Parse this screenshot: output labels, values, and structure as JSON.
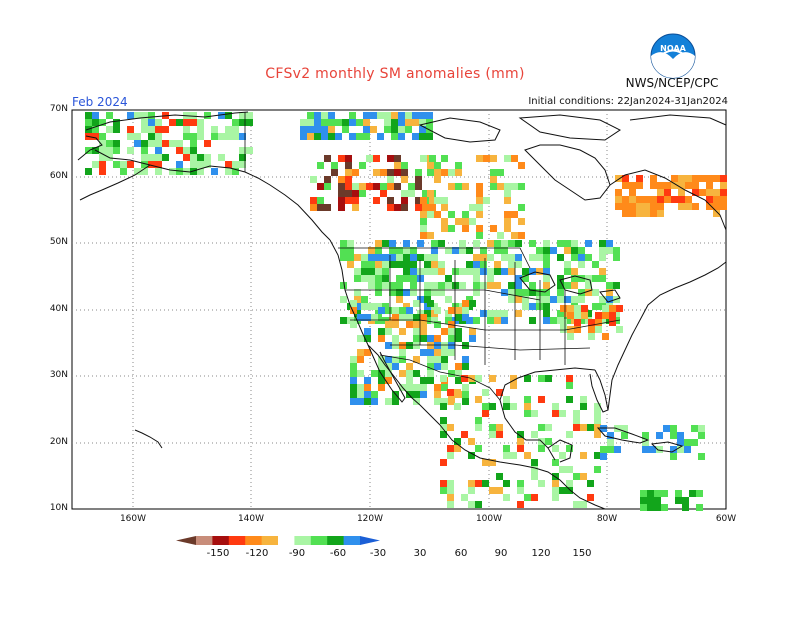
{
  "header": {
    "title": "CFSv2 monthly SM anomalies (mm)",
    "month": "Feb 2024",
    "agency": "NWS/NCEP/CPC",
    "initial_conditions": "Initial conditions: 22Jan2024-31Jan2024",
    "logo_text": "NOAA"
  },
  "axes": {
    "lat_labels": [
      "70N",
      "60N",
      "50N",
      "40N",
      "30N",
      "20N",
      "10N"
    ],
    "lon_labels": [
      "160W",
      "140W",
      "120W",
      "100W",
      "80W",
      "60W"
    ]
  },
  "colorbar": {
    "labels": [
      "-150",
      "-120",
      "-90",
      "-60",
      "-30",
      "30",
      "60",
      "90",
      "120",
      "150"
    ],
    "colors": [
      "#6b3a2a",
      "#c88d7a",
      "#a60e0e",
      "#ff3a10",
      "#ff8a1a",
      "#f7b43e",
      "#ffffff",
      "#a9f5a4",
      "#52e053",
      "#12a51b",
      "#2f90ed",
      "#1b5fd6"
    ]
  },
  "colors": {
    "title": "#e8443a",
    "month": "#2b56d9",
    "coast": "#111111",
    "grid": "#888888",
    "logo_blue": "#1380d8"
  }
}
